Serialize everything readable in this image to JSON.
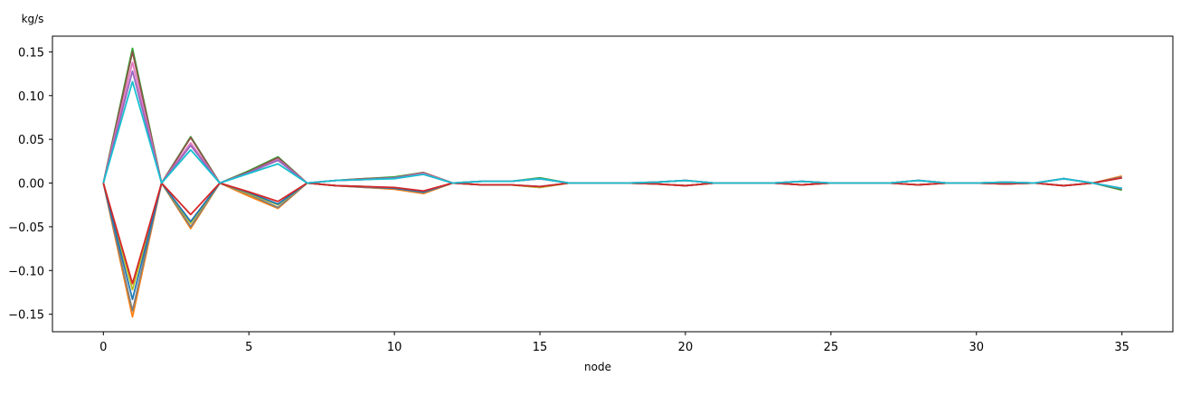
{
  "chart_data": {
    "type": "line",
    "title": "",
    "xlabel": "node",
    "ylabel": "kg/s",
    "xlim": [
      -1.75,
      36.75
    ],
    "ylim": [
      -0.17,
      0.168
    ],
    "xticks": [
      0,
      5,
      10,
      15,
      20,
      25,
      30,
      35
    ],
    "xtick_labels": [
      "0",
      "5",
      "10",
      "15",
      "20",
      "25",
      "30",
      "35"
    ],
    "yticks": [
      -0.15,
      -0.1,
      -0.05,
      0.0,
      0.05,
      0.1,
      0.15
    ],
    "ytick_labels": [
      "−0.15",
      "−0.10",
      "−0.05",
      "0.00",
      "0.05",
      "0.10",
      "0.15"
    ],
    "grid": false,
    "legend": "none",
    "x": [
      0,
      1,
      2,
      3,
      4,
      5,
      6,
      7,
      8,
      9,
      10,
      11,
      12,
      13,
      14,
      15,
      16,
      17,
      18,
      19,
      20,
      21,
      22,
      23,
      24,
      25,
      26,
      27,
      28,
      29,
      30,
      31,
      32,
      33,
      34,
      35
    ],
    "series": [
      {
        "color": "#ff7f0e",
        "values": [
          0,
          -0.153,
          0,
          -0.052,
          0,
          -0.015,
          -0.029,
          0,
          -0.003,
          -0.005,
          -0.007,
          -0.012,
          0,
          -0.002,
          -0.002,
          -0.005,
          0,
          0,
          0,
          -0.001,
          -0.003,
          0,
          0,
          0,
          -0.002,
          0,
          0,
          0,
          -0.002,
          0,
          0,
          -0.001,
          0,
          -0.003,
          0,
          0.008
        ]
      },
      {
        "color": "#2ca02c",
        "values": [
          0,
          0.154,
          0,
          0.053,
          0,
          0.014,
          0.03,
          0,
          0.003,
          0.005,
          0.007,
          0.012,
          0,
          0.002,
          0.002,
          0.006,
          0,
          0,
          0,
          0.001,
          0.003,
          0,
          0,
          0,
          0.002,
          0,
          0,
          0,
          0.003,
          0,
          0,
          0.001,
          0,
          0.005,
          0,
          -0.008
        ]
      },
      {
        "color": "#8c564b",
        "values": [
          0,
          0.15,
          0,
          0.052,
          0,
          0.013,
          0.029,
          0,
          0.003,
          0.005,
          0.006,
          0.012,
          0,
          0.002,
          0.002,
          0.005,
          0,
          0,
          0,
          0.001,
          0.003,
          0,
          0,
          0,
          0.002,
          0,
          0,
          0,
          0.003,
          0,
          0,
          0.001,
          0,
          0.005,
          0,
          -0.007
        ]
      },
      {
        "color": "#7f7f7f",
        "values": [
          0,
          -0.146,
          0,
          -0.05,
          0,
          -0.013,
          -0.028,
          0,
          -0.003,
          -0.005,
          -0.006,
          -0.011,
          0,
          -0.002,
          -0.002,
          -0.005,
          0,
          0,
          0,
          -0.001,
          -0.003,
          0,
          0,
          0,
          -0.002,
          0,
          0,
          0,
          -0.002,
          0,
          0,
          -0.001,
          0,
          -0.003,
          0,
          0.007
        ]
      },
      {
        "color": "#e377c2",
        "values": [
          0,
          0.138,
          0,
          0.046,
          0,
          0.012,
          0.027,
          0,
          0.003,
          0.004,
          0.006,
          0.011,
          0,
          0.002,
          0.002,
          0.005,
          0,
          0,
          0,
          0.001,
          0.003,
          0,
          0,
          0,
          0.002,
          0,
          0,
          0,
          0.003,
          0,
          0,
          0.001,
          0,
          0.005,
          0,
          -0.006
        ]
      },
      {
        "color": "#9467bd",
        "values": [
          0,
          0.128,
          0,
          0.043,
          0,
          0.012,
          0.026,
          0,
          0.003,
          0.004,
          0.006,
          0.01,
          0,
          0.002,
          0.002,
          0.005,
          0,
          0,
          0,
          0.001,
          0.003,
          0,
          0,
          0,
          0.002,
          0,
          0,
          0,
          0.003,
          0,
          0,
          0.001,
          0,
          0.005,
          0,
          -0.006
        ]
      },
      {
        "color": "#bcbd22",
        "values": [
          0,
          -0.122,
          0,
          -0.046,
          0,
          -0.012,
          -0.025,
          0,
          -0.003,
          -0.004,
          -0.006,
          -0.01,
          0,
          -0.002,
          -0.002,
          -0.005,
          0,
          0,
          0,
          -0.001,
          -0.003,
          0,
          0,
          0,
          -0.002,
          0,
          0,
          0,
          -0.002,
          0,
          0,
          -0.001,
          0,
          -0.003,
          0,
          0.006
        ]
      },
      {
        "color": "#1f77b4",
        "values": [
          0,
          -0.133,
          0,
          -0.044,
          0,
          -0.011,
          -0.024,
          0,
          -0.003,
          -0.004,
          -0.006,
          -0.01,
          0,
          -0.002,
          -0.002,
          -0.004,
          0,
          0,
          0,
          -0.001,
          -0.003,
          0,
          0,
          0,
          -0.002,
          0,
          0,
          0,
          -0.002,
          0,
          0,
          -0.001,
          0,
          -0.003,
          0,
          0.006
        ]
      },
      {
        "color": "#d62728",
        "values": [
          0,
          -0.115,
          0,
          -0.036,
          0,
          -0.01,
          -0.021,
          0,
          -0.003,
          -0.004,
          -0.005,
          -0.009,
          0,
          -0.002,
          -0.002,
          -0.004,
          0,
          0,
          0,
          -0.001,
          -0.003,
          0,
          0,
          0,
          -0.002,
          0,
          0,
          0,
          -0.002,
          0,
          0,
          -0.001,
          0,
          -0.003,
          0,
          0.006
        ]
      },
      {
        "color": "#17becf",
        "values": [
          0,
          0.116,
          0,
          0.038,
          0,
          0.011,
          0.022,
          0,
          0.003,
          0.004,
          0.005,
          0.01,
          0,
          0.002,
          0.002,
          0.005,
          0,
          0,
          0,
          0.001,
          0.003,
          0,
          0,
          0,
          0.002,
          0,
          0,
          0,
          0.003,
          0,
          0,
          0.001,
          0,
          0.005,
          0,
          -0.006
        ]
      }
    ]
  }
}
